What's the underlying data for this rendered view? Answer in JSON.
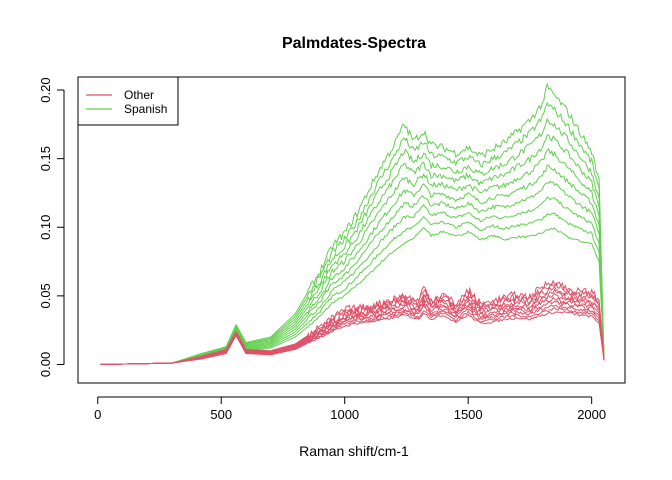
{
  "chart_data": {
    "type": "line",
    "title": "Palmdates-Spectra",
    "xlabel": "Raman shift/cm-1",
    "ylabel": "",
    "xlim": [
      -80,
      2135
    ],
    "ylim": [
      -0.0135,
      0.2095
    ],
    "x_ticks": [
      "0",
      "500",
      "1000",
      "1500",
      "2000"
    ],
    "x_tick_values": [
      0,
      500,
      1000,
      1500,
      2000
    ],
    "y_ticks": [
      "0.00",
      "0.05",
      "0.10",
      "0.15",
      "0.20"
    ],
    "y_tick_values": [
      0.0,
      0.05,
      0.1,
      0.15,
      0.2
    ],
    "legend": {
      "position": "top-left",
      "entries": [
        {
          "label": "Other",
          "color": "#DF536B"
        },
        {
          "label": "Spanish",
          "color": "#61D04F"
        }
      ]
    },
    "grid": false,
    "series": [
      {
        "name": "Other",
        "color": "#DF536B",
        "x": [
          10,
          300,
          420,
          520,
          560,
          600,
          700,
          800,
          900,
          1000,
          1050,
          1100,
          1200,
          1240,
          1300,
          1320,
          1350,
          1400,
          1450,
          1500,
          1550,
          1600,
          1650,
          1700,
          1750,
          1800,
          1850,
          1900,
          1950,
          2000,
          2030,
          2050
        ],
        "y_min": [
          0,
          0.001,
          0.004,
          0.008,
          0.021,
          0.008,
          0.007,
          0.011,
          0.02,
          0.028,
          0.03,
          0.031,
          0.034,
          0.036,
          0.033,
          0.038,
          0.033,
          0.036,
          0.031,
          0.036,
          0.03,
          0.031,
          0.033,
          0.034,
          0.033,
          0.036,
          0.038,
          0.038,
          0.036,
          0.035,
          0.03,
          0.003
        ],
        "y_max": [
          0,
          0.001,
          0.006,
          0.011,
          0.024,
          0.011,
          0.01,
          0.015,
          0.027,
          0.04,
          0.041,
          0.042,
          0.048,
          0.05,
          0.046,
          0.057,
          0.047,
          0.051,
          0.044,
          0.054,
          0.044,
          0.046,
          0.049,
          0.051,
          0.049,
          0.057,
          0.061,
          0.055,
          0.053,
          0.053,
          0.047,
          0.004
        ],
        "count": 10
      },
      {
        "name": "Spanish",
        "color": "#61D04F",
        "x": [
          10,
          300,
          420,
          520,
          560,
          600,
          700,
          800,
          900,
          950,
          1000,
          1050,
          1100,
          1150,
          1200,
          1240,
          1280,
          1320,
          1350,
          1400,
          1450,
          1500,
          1550,
          1600,
          1650,
          1700,
          1750,
          1800,
          1820,
          1850,
          1900,
          1950,
          2000,
          2030,
          2050
        ],
        "y_min": [
          0,
          0.001,
          0.005,
          0.01,
          0.022,
          0.01,
          0.012,
          0.02,
          0.035,
          0.045,
          0.05,
          0.058,
          0.066,
          0.075,
          0.083,
          0.088,
          0.092,
          0.1,
          0.094,
          0.097,
          0.093,
          0.097,
          0.091,
          0.094,
          0.091,
          0.093,
          0.093,
          0.096,
          0.098,
          0.099,
          0.093,
          0.09,
          0.088,
          0.075,
          0.004
        ],
        "y_max": [
          0,
          0.001,
          0.008,
          0.013,
          0.029,
          0.016,
          0.02,
          0.037,
          0.068,
          0.086,
          0.096,
          0.11,
          0.128,
          0.145,
          0.16,
          0.175,
          0.163,
          0.17,
          0.16,
          0.158,
          0.154,
          0.158,
          0.152,
          0.157,
          0.162,
          0.17,
          0.178,
          0.19,
          0.202,
          0.196,
          0.185,
          0.17,
          0.155,
          0.135,
          0.004
        ],
        "count": 10
      }
    ]
  }
}
